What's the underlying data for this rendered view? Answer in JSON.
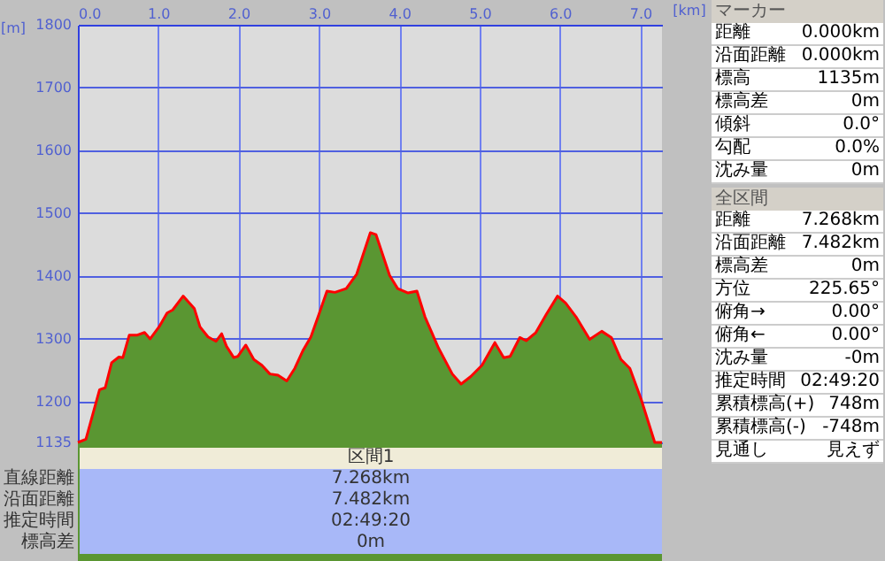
{
  "chart_data": [
    {
      "type": "area",
      "xlabel": "[km]",
      "ylabel": "[m]",
      "x": [
        0,
        0.1,
        0.27,
        0.34,
        0.42,
        0.51,
        0.56,
        0.64,
        0.74,
        0.83,
        0.9,
        1.01,
        1.11,
        1.18,
        1.31,
        1.45,
        1.52,
        1.62,
        1.72,
        1.79,
        1.85,
        1.94,
        1.99,
        2.09,
        2.19,
        2.29,
        2.39,
        2.49,
        2.6,
        2.7,
        2.8,
        2.9,
        3.0,
        3.1,
        3.2,
        3.34,
        3.47,
        3.64,
        3.71,
        3.88,
        3.98,
        4.11,
        4.22,
        4.32,
        4.49,
        4.66,
        4.77,
        4.89,
        5.03,
        5.19,
        5.3,
        5.38,
        5.5,
        5.58,
        5.7,
        5.83,
        5.97,
        6.07,
        6.2,
        6.37,
        6.52,
        6.64,
        6.76,
        6.87,
        7.01,
        7.18,
        7.27
      ],
      "series": [
        {
          "type": "area",
          "color": "#5a9632",
          "values": [
            1135,
            1140,
            1219,
            1222,
            1262,
            1271,
            1270,
            1306,
            1306,
            1310,
            1300,
            1319,
            1341,
            1346,
            1368,
            1348,
            1319,
            1303,
            1296,
            1308,
            1288,
            1270,
            1272,
            1290,
            1267,
            1258,
            1244,
            1242,
            1233,
            1253,
            1281,
            1303,
            1339,
            1376,
            1374,
            1380,
            1403,
            1469,
            1466,
            1401,
            1380,
            1373,
            1376,
            1335,
            1285,
            1244,
            1228,
            1240,
            1258,
            1294,
            1270,
            1272,
            1302,
            1297,
            1310,
            1339,
            1368,
            1357,
            1335,
            1299,
            1312,
            1302,
            1267,
            1253,
            1204,
            1135,
            1135
          ]
        },
        {
          "type": "line",
          "color": "#ff0000",
          "values": [
            1135,
            1140,
            1219,
            1222,
            1262,
            1271,
            1270,
            1306,
            1306,
            1310,
            1300,
            1319,
            1341,
            1346,
            1368,
            1348,
            1319,
            1303,
            1296,
            1308,
            1288,
            1270,
            1272,
            1290,
            1267,
            1258,
            1244,
            1242,
            1233,
            1253,
            1281,
            1303,
            1339,
            1376,
            1374,
            1380,
            1403,
            1469,
            1466,
            1401,
            1380,
            1373,
            1376,
            1335,
            1285,
            1244,
            1228,
            1240,
            1258,
            1294,
            1270,
            1272,
            1302,
            1297,
            1310,
            1339,
            1368,
            1357,
            1335,
            1299,
            1312,
            1302,
            1267,
            1253,
            1204,
            1135,
            1135
          ]
        }
      ],
      "xlim": [
        0,
        7.27
      ],
      "xticks": [
        {
          "value": 0,
          "label": "0.0"
        },
        {
          "value": 1,
          "label": "1.0"
        },
        {
          "value": 2,
          "label": "2.0"
        },
        {
          "value": 3,
          "label": "3.0"
        },
        {
          "value": 4,
          "label": "4.0"
        },
        {
          "value": 5,
          "label": "5.0"
        },
        {
          "value": 6,
          "label": "6.0"
        },
        {
          "value": 7,
          "label": "7.0"
        }
      ],
      "ylim": [
        1135,
        1800
      ],
      "yticks": [
        1135,
        1200,
        1300,
        1400,
        1500,
        1600,
        1700,
        1800
      ],
      "grid": true
    },
    {
      "type": "other",
      "title": "マーカー",
      "annotations": [
        "距離",
        "0.000km",
        "沿面距離",
        "0.000km",
        "標高",
        "1135m",
        "標高差",
        "0m",
        "傾斜",
        "0.0°",
        "勾配",
        "0.0%",
        "沈み量",
        "0m"
      ]
    },
    {
      "type": "other",
      "title": "全区間",
      "annotations": [
        "距離",
        "7.268km",
        "沿面距離",
        "7.482km",
        "標高差",
        "0m",
        "方位",
        "225.65°",
        "俯角→",
        "0.00°",
        "俯角←",
        "0.00°",
        "沈み量",
        "-0m",
        "推定時間",
        "02:49:20",
        "累積標高(+)",
        "748m",
        "累積標高(-)",
        "-748m",
        "見通し",
        "見えず"
      ]
    },
    {
      "type": "other",
      "title": "区間1",
      "annotations": [
        "直線距離",
        "7.268km",
        "沿面距離",
        "7.482km",
        "推定時間",
        "02:49:20",
        "標高差",
        "0m"
      ]
    }
  ]
}
